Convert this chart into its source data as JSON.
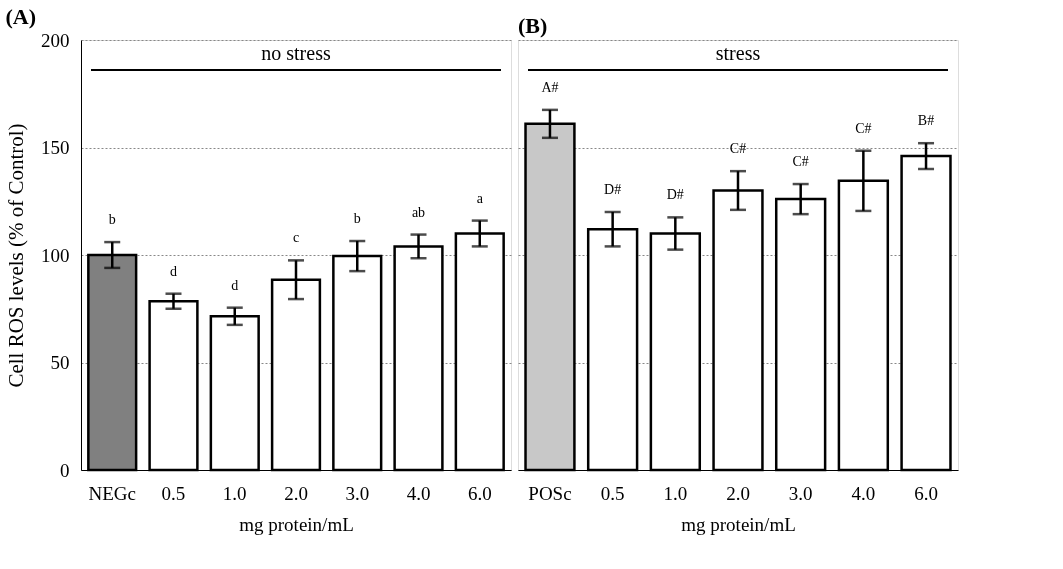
{
  "chart_data": [
    {
      "type": "bar",
      "title": "(A)",
      "ylabel": "Cell ROS levels (% of Control)",
      "xlabel": "mg protein/mL",
      "categories": [
        "NEGc",
        "0.5",
        "1.0",
        "2.0",
        "3.0",
        "4.0",
        "6.0"
      ],
      "values": [
        100,
        78.5,
        71.5,
        88.5,
        99.5,
        104,
        110
      ],
      "errors": [
        6,
        3.5,
        4,
        9,
        7,
        5.5,
        6
      ],
      "colors": [
        "#808080",
        "#ffffff",
        "#ffffff",
        "#ffffff",
        "#ffffff",
        "#ffffff",
        "#ffffff"
      ],
      "ylim": [
        0,
        200
      ],
      "yticks": [
        0,
        50,
        100,
        150,
        200
      ],
      "grid": "y",
      "legend": false,
      "ref_lines": [
        {
          "axis": "y",
          "value": 186,
          "label": "no stress"
        }
      ],
      "annotations": [
        "b",
        "d",
        "d",
        "c",
        "b",
        "ab",
        "a"
      ]
    },
    {
      "type": "bar",
      "title": "(B)",
      "xlabel": "mg protein/mL",
      "categories": [
        "POSc",
        "0.5",
        "1.0",
        "2.0",
        "3.0",
        "4.0",
        "6.0"
      ],
      "values": [
        161,
        112,
        110,
        130,
        126,
        134.5,
        146
      ],
      "errors": [
        6.5,
        8,
        7.5,
        9,
        7,
        14,
        6
      ],
      "colors": [
        "#c8c8c8",
        "#ffffff",
        "#ffffff",
        "#ffffff",
        "#ffffff",
        "#ffffff",
        "#ffffff"
      ],
      "ylim": [
        0,
        200
      ],
      "yticks": [
        0,
        50,
        100,
        150,
        200
      ],
      "grid": "y",
      "legend": false,
      "tick_labels": "x",
      "ref_lines": [
        {
          "axis": "y",
          "value": 186,
          "label": "stress"
        }
      ],
      "annotations": [
        "A#",
        "D#",
        "D#",
        "C#",
        "C#",
        "C#",
        "B#"
      ]
    }
  ]
}
